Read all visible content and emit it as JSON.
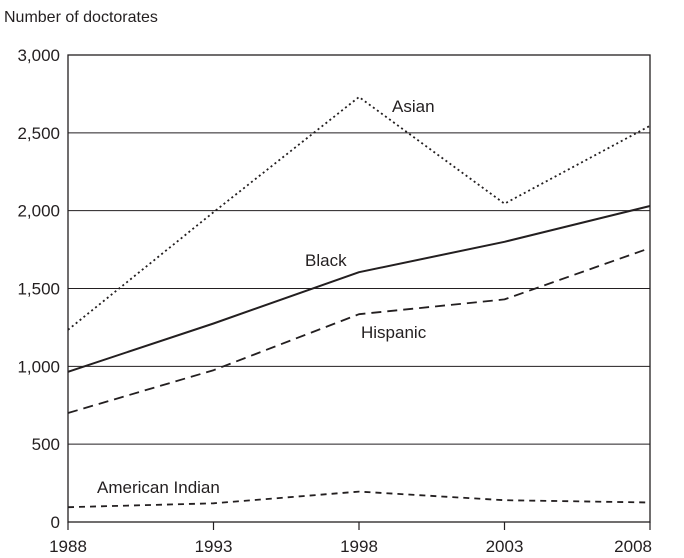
{
  "chart_data": {
    "type": "line",
    "title": "",
    "ylabel": "Number of doctorates",
    "xlabel": "",
    "x": [
      1988,
      1993,
      1998,
      2003,
      2008
    ],
    "x_tick_labels": [
      "1988",
      "1993",
      "1998",
      "2003",
      "2008"
    ],
    "xlim": [
      1988,
      2008
    ],
    "ylim": [
      0,
      3000
    ],
    "y_ticks": [
      0,
      500,
      1000,
      1500,
      2000,
      2500,
      3000
    ],
    "y_tick_labels": [
      "0",
      "500",
      "1,000",
      "1,500",
      "2,000",
      "2,500",
      "3,000"
    ],
    "grid": "horizontal",
    "legend": "inline labels",
    "series": [
      {
        "name": "Asian",
        "style": "dotted",
        "color": "#231f20",
        "values": [
          1235,
          1990,
          2730,
          2045,
          2545
        ]
      },
      {
        "name": "Black",
        "style": "solid",
        "color": "#231f20",
        "values": [
          965,
          1275,
          1605,
          1800,
          2030
        ]
      },
      {
        "name": "Hispanic",
        "style": "dashed",
        "color": "#231f20",
        "values": [
          700,
          975,
          1335,
          1430,
          1760
        ]
      },
      {
        "name": "American Indian",
        "style": "dashed",
        "color": "#231f20",
        "values": [
          95,
          120,
          195,
          140,
          125
        ]
      }
    ]
  }
}
